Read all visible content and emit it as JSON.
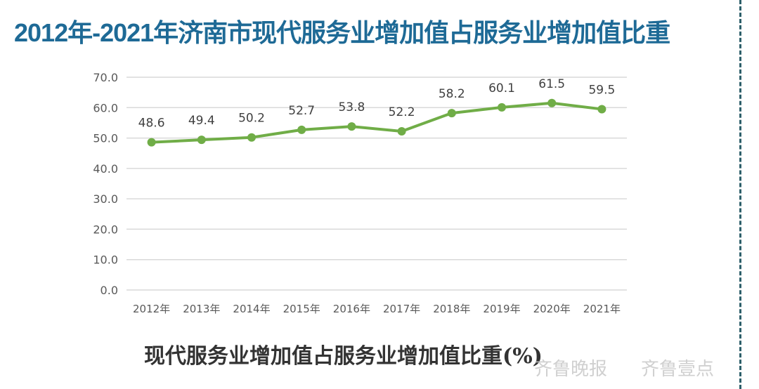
{
  "title": "2012年-2021年济南市现代服务业增加值占服务业增加值比重",
  "caption": "现代服务业增加值占服务业增加值比重(%)",
  "watermark": {
    "left": "齐鲁晚报",
    "right": "齐鲁壹点"
  },
  "colors": {
    "title": "#1e6a96",
    "line": "#70ad47",
    "grid": "#d9d9d9",
    "divider": "#2d5f6a"
  },
  "chart_data": {
    "type": "line",
    "categories": [
      "2012年",
      "2013年",
      "2014年",
      "2015年",
      "2016年",
      "2017年",
      "2018年",
      "2019年",
      "2020年",
      "2021年"
    ],
    "series": [
      {
        "values": [
          48.6,
          49.4,
          50.2,
          52.7,
          53.8,
          52.2,
          58.2,
          60.1,
          61.5,
          59.5
        ]
      }
    ],
    "data_labels": [
      "48.6",
      "49.4",
      "50.2",
      "52.7",
      "53.8",
      "52.2",
      "58.2",
      "60.1",
      "61.5",
      "59.5"
    ],
    "ylim": [
      0,
      70
    ],
    "yticks": [
      "0.0",
      "10.0",
      "20.0",
      "30.0",
      "40.0",
      "50.0",
      "60.0",
      "70.0"
    ],
    "grid": true,
    "legend": "none"
  }
}
